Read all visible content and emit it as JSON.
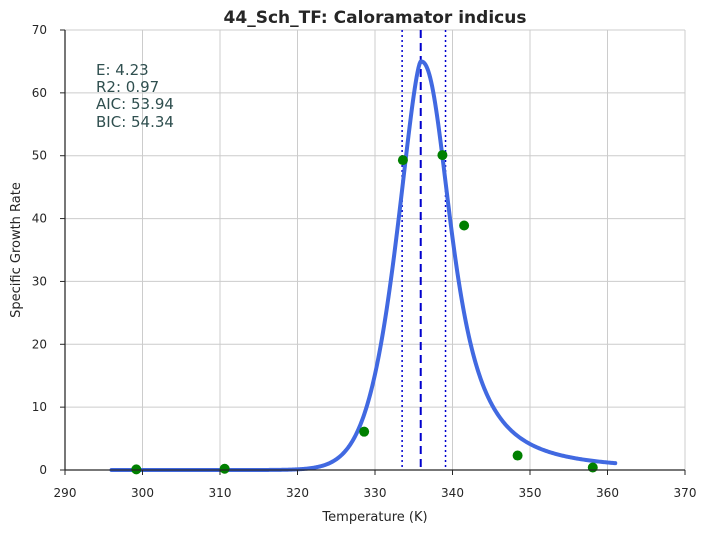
{
  "chart_data": {
    "type": "scatter",
    "title": "44_Sch_TF: Caloramator indicus",
    "xlabel": "Temperature (K)",
    "ylabel": "Specific Growth Rate",
    "xlim": [
      290,
      370
    ],
    "ylim": [
      0,
      70
    ],
    "xticks": [
      290,
      300,
      310,
      320,
      330,
      340,
      350,
      360,
      370
    ],
    "yticks": [
      0,
      10,
      20,
      30,
      40,
      50,
      60,
      70
    ],
    "grid": true,
    "points": {
      "color": "#008000",
      "x": [
        299.2,
        310.6,
        328.6,
        333.6,
        338.7,
        341.5,
        348.4,
        358.1
      ],
      "y": [
        0.1,
        0.2,
        6.1,
        49.3,
        50.1,
        38.9,
        2.3,
        0.4
      ]
    },
    "fit_curve": {
      "color": "#4169e1",
      "x_range": [
        296,
        361
      ],
      "peak_x": 335.9,
      "peak_y": 65.0
    },
    "peak_line": {
      "x": 335.9,
      "color": "#0000cd",
      "style": "dashed"
    },
    "bound_lines": {
      "x": [
        333.5,
        339.1
      ],
      "color": "#0000cd",
      "style": "dotted"
    },
    "annotation": [
      "E:  4.23",
      "R2:  0.97",
      "AIC: 53.94",
      "BIC: 54.34"
    ]
  }
}
